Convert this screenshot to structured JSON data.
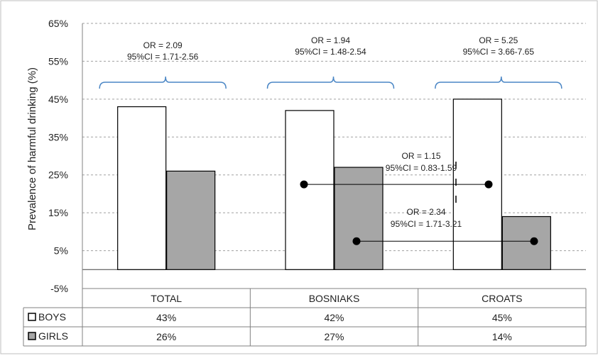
{
  "chart_data": {
    "type": "bar",
    "ylabel": "Prevalence of harmful drinking (%)",
    "ylim": [
      -5,
      65
    ],
    "yticks": [
      -5,
      5,
      15,
      25,
      35,
      45,
      55,
      65
    ],
    "ytick_labels": [
      "-5%",
      "5%",
      "15%",
      "25%",
      "35%",
      "45%",
      "55%",
      "65%"
    ],
    "grid": "horizontal dashed",
    "categories": [
      "TOTAL",
      "BOSNIAKS",
      "CROATS"
    ],
    "series": [
      {
        "name": "BOYS",
        "values": [
          43,
          42,
          45
        ],
        "labels": [
          "43%",
          "42%",
          "45%"
        ],
        "color": "#ffffff"
      },
      {
        "name": "GIRLS",
        "values": [
          26,
          27,
          14
        ],
        "labels": [
          "26%",
          "27%",
          "14%"
        ],
        "color": "#a6a6a6"
      }
    ],
    "annotations": [
      {
        "group": "TOTAL",
        "line1": "OR = 2.09",
        "line2": "95%CI = 1.71-2.56"
      },
      {
        "group": "BOSNIAKS",
        "line1": "OR = 1.94",
        "line2": "95%CI = 1.48-2.54"
      },
      {
        "group": "CROATS",
        "line1": "OR = 5.25",
        "line2": "95%CI = 3.66-7.65"
      }
    ],
    "comparisons": [
      {
        "line1": "OR = 1.15",
        "line2": "95%CI = 0.83-1.59",
        "y": 22.5
      },
      {
        "line1": "OR = 2.34",
        "line2": "95%CI = 1.71-3.21",
        "y": 7.5
      }
    ],
    "table": "data table below chart with legend keys"
  },
  "colors": {
    "bracket": "#4a86c5",
    "gridline": "#a0a0a0",
    "bar_border": "#000000",
    "girls_fill": "#a6a6a6",
    "boys_fill": "#ffffff"
  }
}
